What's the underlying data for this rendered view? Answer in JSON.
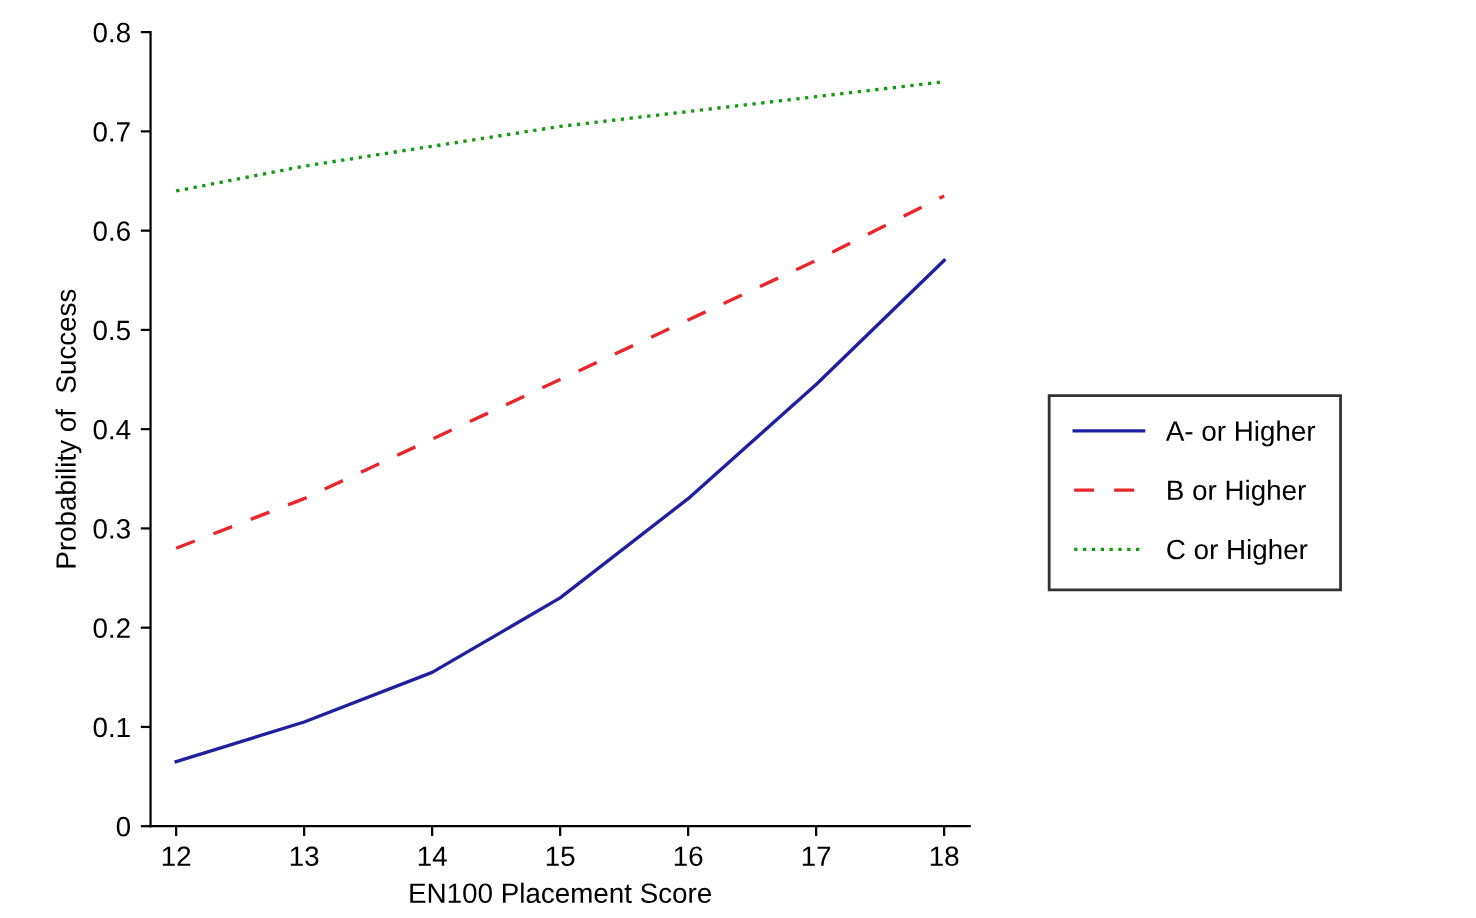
{
  "chart_data": {
    "type": "line",
    "xlabel": "EN100 Placement Score",
    "ylabel": "Probability of  Success",
    "x": [
      12,
      13,
      14,
      15,
      16,
      17,
      18
    ],
    "series": [
      {
        "name": "A- or Higher",
        "color": "#1f1f9f",
        "line_style": "solid",
        "values": [
          0.065,
          0.105,
          0.155,
          0.23,
          0.33,
          0.445,
          0.57
        ]
      },
      {
        "name": "B or Higher",
        "color": "#e8262b",
        "line_style": "dashed",
        "values": [
          0.28,
          0.33,
          0.39,
          0.45,
          0.51,
          0.57,
          0.635
        ]
      },
      {
        "name": "C or Higher",
        "color": "#129a12",
        "line_style": "dotted",
        "values": [
          0.64,
          0.665,
          0.685,
          0.705,
          0.72,
          0.735,
          0.75
        ]
      }
    ],
    "xlim": [
      11.8,
      18.2
    ],
    "xticks": [
      12,
      13,
      14,
      15,
      16,
      17,
      18
    ],
    "ylim": [
      0,
      0.8
    ],
    "yticks": [
      0,
      0.1,
      0.2,
      0.3,
      0.4,
      0.5,
      0.6,
      0.7,
      0.8
    ],
    "grid": false,
    "legend": "right",
    "marker": "none"
  }
}
